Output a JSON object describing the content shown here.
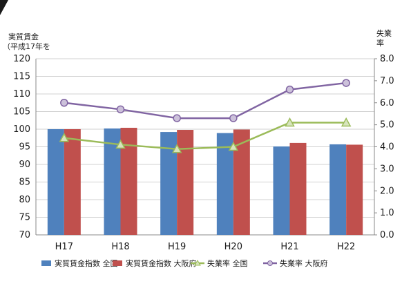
{
  "chart_data": {
    "type": "bar",
    "categories": [
      "H17",
      "H18",
      "H19",
      "H20",
      "H21",
      "H22"
    ],
    "series": [
      {
        "name": "実質賃金指数 全国",
        "type": "bar",
        "axis": "left",
        "color": "#4f81bd",
        "values": [
          100.0,
          100.2,
          99.2,
          98.9,
          95.1,
          95.7
        ]
      },
      {
        "name": "実質賃金指数 大阪府",
        "type": "bar",
        "axis": "left",
        "color": "#c0504d",
        "values": [
          100.0,
          100.4,
          99.8,
          99.9,
          96.1,
          95.6
        ]
      },
      {
        "name": "失業率 全国",
        "type": "line",
        "axis": "right",
        "color": "#9bbb59",
        "marker": "triangle",
        "values": [
          4.4,
          4.1,
          3.9,
          4.0,
          5.1,
          5.1
        ]
      },
      {
        "name": "失業率 大阪府",
        "type": "line",
        "axis": "right",
        "color": "#8064a2",
        "marker": "circle",
        "values": [
          6.0,
          5.7,
          5.3,
          5.3,
          6.6,
          6.9
        ]
      }
    ],
    "ylabel_left": [
      "実質賃金",
      "（平成17年を"
    ],
    "ylabel_right": [
      "失業",
      "率"
    ],
    "ylim_left": [
      70,
      120
    ],
    "yticks_left": [
      "70",
      "75",
      "80",
      "85",
      "90",
      "95",
      "100",
      "105",
      "110",
      "115",
      "120"
    ],
    "ylim_right": [
      0,
      8
    ],
    "yticks_right": [
      "0.0",
      "1.0",
      "2.0",
      "3.0",
      "4.0",
      "5.0",
      "6.0",
      "7.0",
      "8.0"
    ],
    "grid": true,
    "legend_position": "bottom"
  }
}
